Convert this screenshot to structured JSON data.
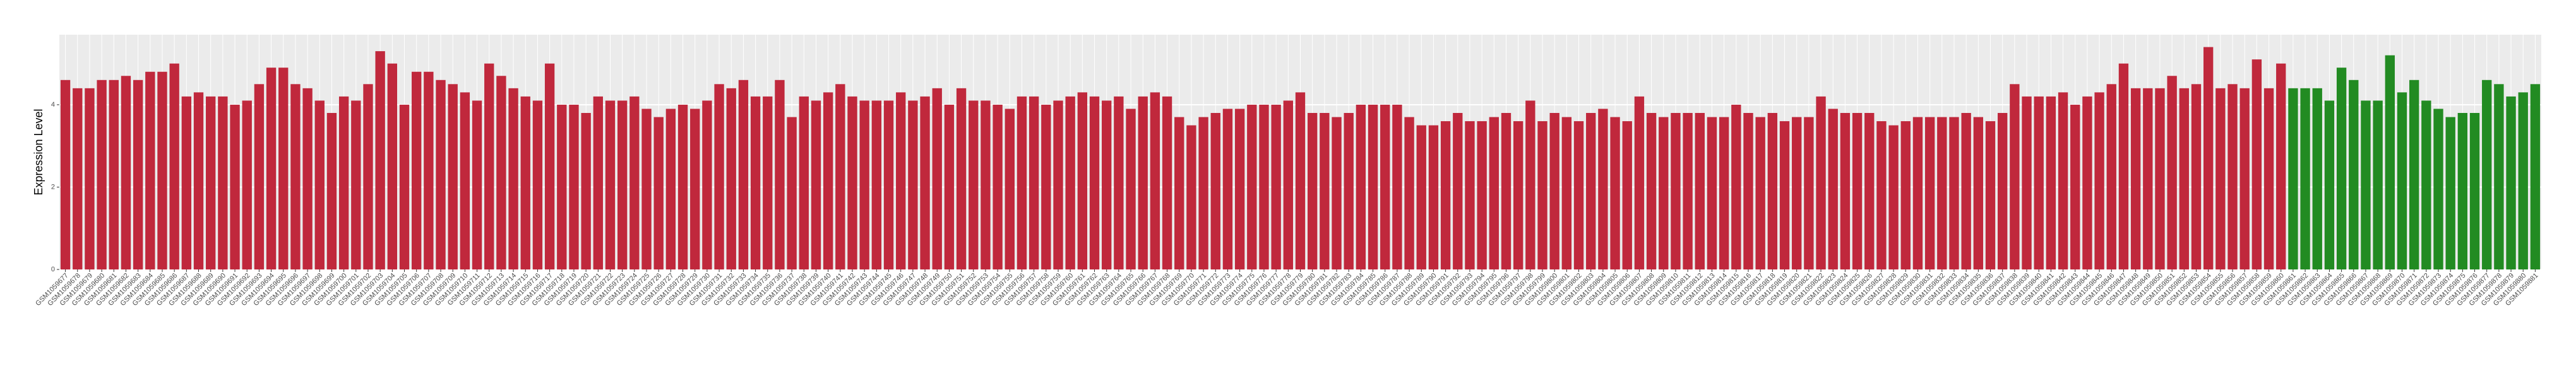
{
  "chart_data": {
    "type": "bar",
    "y_label": "Expression Level",
    "categories": [
      "GSM1059677",
      "GSM1059678",
      "GSM1059679",
      "GSM1059680",
      "GSM1059681",
      "GSM1059682",
      "GSM1059683",
      "GSM1059684",
      "GSM1059685",
      "GSM1059686",
      "GSM1059687",
      "GSM1059688",
      "GSM1059689",
      "GSM1059690",
      "GSM1059691",
      "GSM1059692",
      "GSM1059693",
      "GSM1059694",
      "GSM1059695",
      "GSM1059696",
      "GSM1059697",
      "GSM1059698",
      "GSM1059699",
      "GSM1059700",
      "GSM1059701",
      "GSM1059702",
      "GSM1059703",
      "GSM1059704",
      "GSM1059705",
      "GSM1059706",
      "GSM1059707",
      "GSM1059708",
      "GSM1059709",
      "GSM1059710",
      "GSM1059711",
      "GSM1059712",
      "GSM1059713",
      "GSM1059714",
      "GSM1059715",
      "GSM1059716",
      "GSM1059717",
      "GSM1059718",
      "GSM1059719",
      "GSM1059720",
      "GSM1059721",
      "GSM1059722",
      "GSM1059723",
      "GSM1059724",
      "GSM1059725",
      "GSM1059726",
      "GSM1059727",
      "GSM1059728",
      "GSM1059729",
      "GSM1059730",
      "GSM1059731",
      "GSM1059732",
      "GSM1059733",
      "GSM1059734",
      "GSM1059735",
      "GSM1059736",
      "GSM1059737",
      "GSM1059738",
      "GSM1059739",
      "GSM1059740",
      "GSM1059741",
      "GSM1059742",
      "GSM1059743",
      "GSM1059744",
      "GSM1059745",
      "GSM1059746",
      "GSM1059747",
      "GSM1059748",
      "GSM1059749",
      "GSM1059750",
      "GSM1059751",
      "GSM1059752",
      "GSM1059753",
      "GSM1059754",
      "GSM1059755",
      "GSM1059756",
      "GSM1059757",
      "GSM1059758",
      "GSM1059759",
      "GSM1059760",
      "GSM1059761",
      "GSM1059762",
      "GSM1059763",
      "GSM1059764",
      "GSM1059765",
      "GSM1059766",
      "GSM1059767",
      "GSM1059768",
      "GSM1059769",
      "GSM1059770",
      "GSM1059771",
      "GSM1059772",
      "GSM1059773",
      "GSM1059774",
      "GSM1059775",
      "GSM1059776",
      "GSM1059777",
      "GSM1059778",
      "GSM1059779",
      "GSM1059780",
      "GSM1059781",
      "GSM1059782",
      "GSM1059783",
      "GSM1059784",
      "GSM1059785",
      "GSM1059786",
      "GSM1059787",
      "GSM1059788",
      "GSM1059789",
      "GSM1059790",
      "GSM1059791",
      "GSM1059792",
      "GSM1059793",
      "GSM1059794",
      "GSM1059795",
      "GSM1059796",
      "GSM1059797",
      "GSM1059798",
      "GSM1059799",
      "GSM1059800",
      "GSM1059801",
      "GSM1059802",
      "GSM1059803",
      "GSM1059804",
      "GSM1059805",
      "GSM1059806",
      "GSM1059807",
      "GSM1059808",
      "GSM1059809",
      "GSM1059810",
      "GSM1059811",
      "GSM1059812",
      "GSM1059813",
      "GSM1059814",
      "GSM1059815",
      "GSM1059816",
      "GSM1059817",
      "GSM1059818",
      "GSM1059819",
      "GSM1059820",
      "GSM1059821",
      "GSM1059822",
      "GSM1059823",
      "GSM1059824",
      "GSM1059825",
      "GSM1059826",
      "GSM1059827",
      "GSM1059828",
      "GSM1059829",
      "GSM1059830",
      "GSM1059831",
      "GSM1059832",
      "GSM1059833",
      "GSM1059834",
      "GSM1059835",
      "GSM1059836",
      "GSM1059837",
      "GSM1059838",
      "GSM1059839",
      "GSM1059840",
      "GSM1059841",
      "GSM1059842",
      "GSM1059843",
      "GSM1059844",
      "GSM1059845",
      "GSM1059846",
      "GSM1059847",
      "GSM1059848",
      "GSM1059849",
      "GSM1059850",
      "GSM1059851",
      "GSM1059852",
      "GSM1059853",
      "GSM1059854",
      "GSM1059855",
      "GSM1059856",
      "GSM1059857",
      "GSM1059858",
      "GSM1059859",
      "GSM1059860",
      "GSM1059861",
      "GSM1059862",
      "GSM1059863",
      "GSM1059864",
      "GSM1059865",
      "GSM1059866",
      "GSM1059867",
      "GSM1059868",
      "GSM1059869",
      "GSM1059870",
      "GSM1059871",
      "GSM1059872",
      "GSM1059873",
      "GSM1059874",
      "GSM1059875",
      "GSM1059876",
      "GSM1059877",
      "GSM1059878",
      "GSM1059879",
      "GSM1059880",
      "GSM1059881"
    ],
    "series": [
      {
        "color": "#c0283c",
        "values": [
          4.6,
          4.4,
          4.4,
          4.6,
          4.6,
          4.7,
          4.6,
          4.8,
          4.8,
          5.0,
          4.2,
          4.3,
          4.2,
          4.2,
          4.0,
          4.1,
          4.5,
          4.9,
          4.9,
          4.5,
          4.4,
          4.1,
          3.8,
          4.2,
          4.1,
          4.5,
          5.3,
          5.0,
          4.0,
          4.8,
          4.8,
          4.6,
          4.5,
          4.3,
          4.1,
          5.0,
          4.7,
          4.4,
          4.2,
          4.1,
          5.0,
          4.0,
          4.0,
          3.8,
          4.2,
          4.1,
          4.1,
          4.2,
          3.9,
          3.7,
          3.9,
          4.0,
          3.9,
          4.1,
          4.5,
          4.4,
          4.6,
          4.2,
          4.2,
          4.6,
          3.7,
          4.2,
          4.1,
          4.3,
          4.5,
          4.2,
          4.1,
          4.1,
          4.1,
          4.3,
          4.1,
          4.2,
          4.4,
          4.0,
          4.4,
          4.1,
          4.1,
          4.0,
          3.9,
          4.2,
          4.2,
          4.0,
          4.1,
          4.2,
          4.3,
          4.2,
          4.1,
          4.2,
          3.9,
          4.2,
          4.3,
          4.2,
          3.7,
          3.5,
          3.7,
          3.8,
          3.9,
          3.9,
          4.0,
          4.0,
          4.0,
          4.1,
          4.3,
          3.8,
          3.8,
          3.7,
          3.8,
          4.0,
          4.0,
          4.0,
          4.0,
          3.7,
          3.5,
          3.5,
          3.6,
          3.8,
          3.6,
          3.6,
          3.7,
          3.8,
          3.6,
          4.1,
          3.6,
          3.8,
          3.7,
          3.6,
          3.8,
          3.9,
          3.7,
          3.6,
          4.2,
          3.8,
          3.7,
          3.8,
          3.8,
          3.8,
          3.7,
          3.7,
          4.0,
          3.8,
          3.7,
          3.8,
          3.6,
          3.7,
          3.7,
          4.2,
          3.9,
          3.8,
          3.8,
          3.8,
          3.6,
          3.5,
          3.6,
          3.7,
          3.7,
          3.7,
          3.7,
          3.8,
          3.7,
          3.6,
          3.8,
          4.5,
          4.2,
          4.2,
          4.2,
          4.3,
          4.0,
          4.2,
          4.3,
          4.5,
          5.0,
          4.4,
          4.4,
          4.4,
          4.7,
          4.4,
          4.5,
          5.4,
          4.4,
          4.5,
          4.4,
          5.1,
          4.4,
          5.0,
          null,
          null,
          null,
          null,
          null,
          null,
          null,
          null,
          null,
          null,
          null,
          null,
          null,
          null,
          null,
          null,
          null,
          null,
          null,
          null,
          null
        ]
      },
      {
        "color": "#228b22",
        "values": [
          null,
          null,
          null,
          null,
          null,
          null,
          null,
          null,
          null,
          null,
          null,
          null,
          null,
          null,
          null,
          null,
          null,
          null,
          null,
          null,
          null,
          null,
          null,
          null,
          null,
          null,
          null,
          null,
          null,
          null,
          null,
          null,
          null,
          null,
          null,
          null,
          null,
          null,
          null,
          null,
          null,
          null,
          null,
          null,
          null,
          null,
          null,
          null,
          null,
          null,
          null,
          null,
          null,
          null,
          null,
          null,
          null,
          null,
          null,
          null,
          null,
          null,
          null,
          null,
          null,
          null,
          null,
          null,
          null,
          null,
          null,
          null,
          null,
          null,
          null,
          null,
          null,
          null,
          null,
          null,
          null,
          null,
          null,
          null,
          null,
          null,
          null,
          null,
          null,
          null,
          null,
          null,
          null,
          null,
          null,
          null,
          null,
          null,
          null,
          null,
          null,
          null,
          null,
          null,
          null,
          null,
          null,
          null,
          null,
          null,
          null,
          null,
          null,
          null,
          null,
          null,
          null,
          null,
          null,
          null,
          null,
          null,
          null,
          null,
          null,
          null,
          null,
          null,
          null,
          null,
          null,
          null,
          null,
          null,
          null,
          null,
          null,
          null,
          null,
          null,
          null,
          null,
          null,
          null,
          null,
          null,
          null,
          null,
          null,
          null,
          null,
          null,
          null,
          null,
          null,
          null,
          null,
          null,
          null,
          null,
          null,
          null,
          null,
          null,
          null,
          null,
          null,
          null,
          null,
          null,
          null,
          null,
          null,
          null,
          null,
          null,
          null,
          null,
          null,
          null,
          null,
          null,
          null,
          null,
          4.4,
          4.4,
          4.4,
          4.1,
          4.9,
          4.6,
          4.1,
          4.1,
          5.2,
          4.3,
          4.6,
          4.1,
          3.9,
          3.7,
          3.8,
          3.8,
          4.6,
          4.5,
          4.2,
          4.3,
          4.5
        ]
      }
    ],
    "ylim": [
      0,
      5.7
    ],
    "yticks": [
      0,
      2,
      4
    ],
    "grid": true
  }
}
